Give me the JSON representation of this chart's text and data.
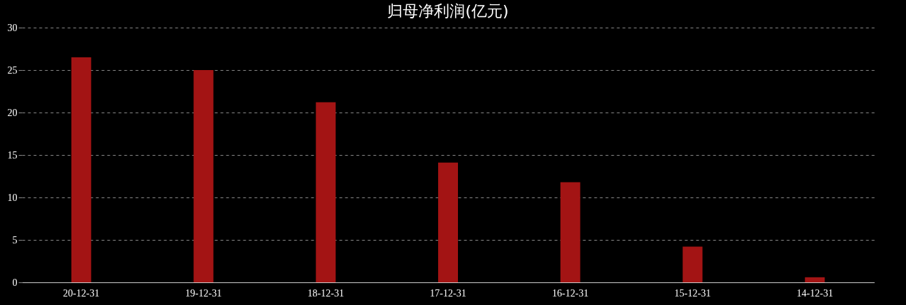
{
  "chart_data": {
    "type": "bar",
    "title": "归母净利润(亿元)",
    "categories": [
      "20-12-31",
      "19-12-31",
      "18-12-31",
      "17-12-31",
      "16-12-31",
      "15-12-31",
      "14-12-31"
    ],
    "values": [
      26.5,
      25.0,
      21.2,
      14.1,
      11.8,
      4.2,
      0.6
    ],
    "color": "#a31414",
    "ylim": [
      0,
      30
    ],
    "yticks": [
      0,
      5,
      10,
      15,
      20,
      25,
      30
    ],
    "grid": "y"
  }
}
